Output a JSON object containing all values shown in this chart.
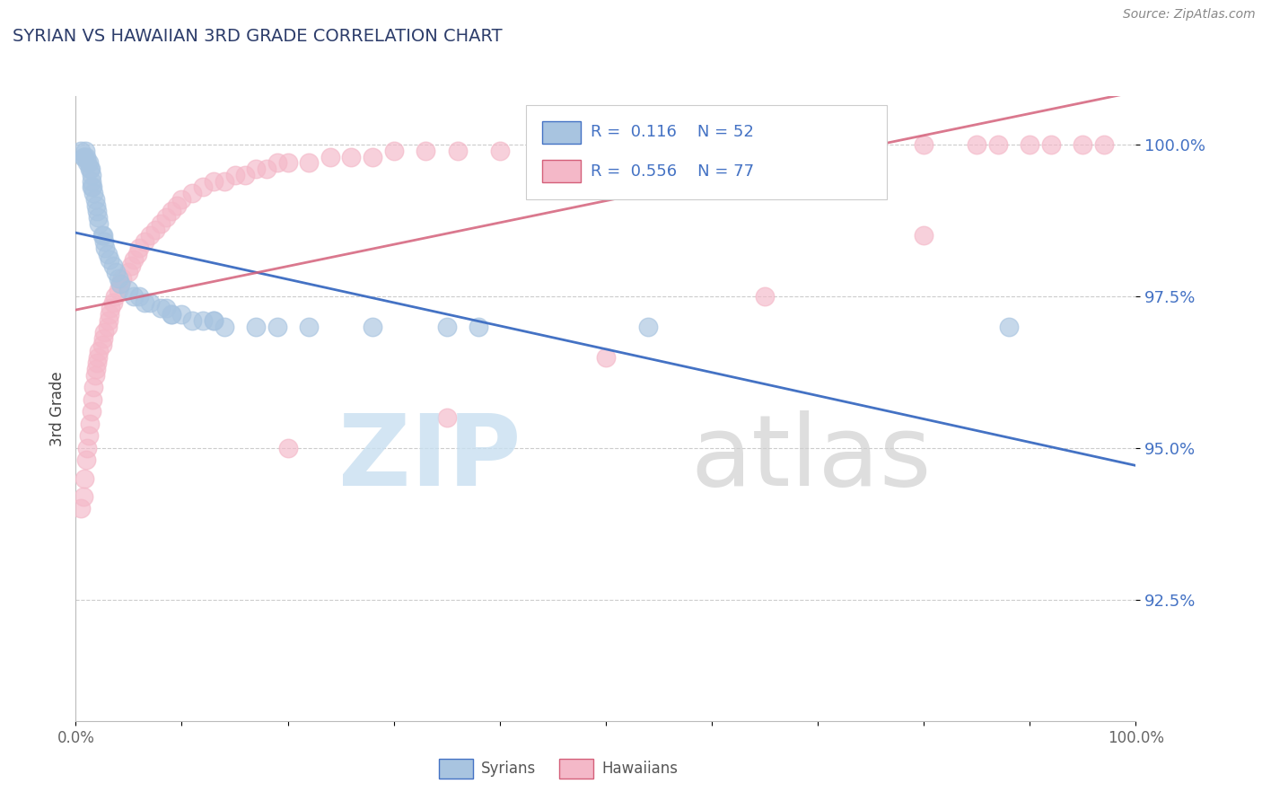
{
  "title": "SYRIAN VS HAWAIIAN 3RD GRADE CORRELATION CHART",
  "source": "Source: ZipAtlas.com",
  "ylabel": "3rd Grade",
  "xmin": 0.0,
  "xmax": 1.0,
  "ymin": 0.905,
  "ymax": 1.008,
  "yticks": [
    0.925,
    0.95,
    0.975,
    1.0
  ],
  "ytick_labels": [
    "92.5%",
    "95.0%",
    "97.5%",
    "100.0%"
  ],
  "legend_R_syrian": "0.116",
  "legend_N_syrian": "52",
  "legend_R_hawaiian": "0.556",
  "legend_N_hawaiian": "77",
  "syrian_color": "#a8c4e0",
  "hawaiian_color": "#f4b8c8",
  "syrian_line_color": "#4472c4",
  "hawaiian_line_color": "#d4607a",
  "title_color": "#2d3d6b",
  "source_color": "#888888",
  "tick_color": "#4472c4",
  "watermark_zip_color": "#c8dff0",
  "watermark_atlas_color": "#d0d0d0",
  "syrians_x": [
    0.005,
    0.007,
    0.008,
    0.009,
    0.01,
    0.011,
    0.012,
    0.013,
    0.014,
    0.015,
    0.015,
    0.015,
    0.016,
    0.017,
    0.018,
    0.019,
    0.02,
    0.021,
    0.022,
    0.025,
    0.026,
    0.027,
    0.028,
    0.03,
    0.032,
    0.035,
    0.038,
    0.04,
    0.042,
    0.05,
    0.055,
    0.06,
    0.065,
    0.07,
    0.08,
    0.085,
    0.09,
    0.1,
    0.11,
    0.13,
    0.14,
    0.17,
    0.19,
    0.22,
    0.28,
    0.35,
    0.38,
    0.54,
    0.09,
    0.12,
    0.13,
    0.88
  ],
  "syrians_y": [
    0.999,
    0.998,
    0.998,
    0.999,
    0.998,
    0.997,
    0.997,
    0.996,
    0.996,
    0.995,
    0.994,
    0.993,
    0.993,
    0.992,
    0.991,
    0.99,
    0.989,
    0.988,
    0.987,
    0.985,
    0.985,
    0.984,
    0.983,
    0.982,
    0.981,
    0.98,
    0.979,
    0.978,
    0.977,
    0.976,
    0.975,
    0.975,
    0.974,
    0.974,
    0.973,
    0.973,
    0.972,
    0.972,
    0.971,
    0.971,
    0.97,
    0.97,
    0.97,
    0.97,
    0.97,
    0.97,
    0.97,
    0.97,
    0.972,
    0.971,
    0.971,
    0.97
  ],
  "hawaiians_x": [
    0.005,
    0.007,
    0.008,
    0.01,
    0.011,
    0.012,
    0.013,
    0.015,
    0.016,
    0.017,
    0.018,
    0.019,
    0.02,
    0.021,
    0.022,
    0.025,
    0.026,
    0.027,
    0.03,
    0.031,
    0.032,
    0.033,
    0.035,
    0.037,
    0.04,
    0.042,
    0.044,
    0.05,
    0.052,
    0.055,
    0.058,
    0.06,
    0.065,
    0.07,
    0.075,
    0.08,
    0.085,
    0.09,
    0.095,
    0.1,
    0.11,
    0.12,
    0.13,
    0.14,
    0.15,
    0.16,
    0.17,
    0.18,
    0.19,
    0.2,
    0.22,
    0.24,
    0.26,
    0.28,
    0.3,
    0.33,
    0.36,
    0.4,
    0.45,
    0.5,
    0.55,
    0.6,
    0.65,
    0.7,
    0.75,
    0.8,
    0.85,
    0.87,
    0.9,
    0.92,
    0.95,
    0.97,
    0.2,
    0.35,
    0.5,
    0.65,
    0.8
  ],
  "hawaiians_y": [
    0.94,
    0.942,
    0.945,
    0.948,
    0.95,
    0.952,
    0.954,
    0.956,
    0.958,
    0.96,
    0.962,
    0.963,
    0.964,
    0.965,
    0.966,
    0.967,
    0.968,
    0.969,
    0.97,
    0.971,
    0.972,
    0.973,
    0.974,
    0.975,
    0.976,
    0.977,
    0.978,
    0.979,
    0.98,
    0.981,
    0.982,
    0.983,
    0.984,
    0.985,
    0.986,
    0.987,
    0.988,
    0.989,
    0.99,
    0.991,
    0.992,
    0.993,
    0.994,
    0.994,
    0.995,
    0.995,
    0.996,
    0.996,
    0.997,
    0.997,
    0.997,
    0.998,
    0.998,
    0.998,
    0.999,
    0.999,
    0.999,
    0.999,
    1.0,
    1.0,
    1.0,
    1.0,
    1.0,
    1.0,
    1.0,
    1.0,
    1.0,
    1.0,
    1.0,
    1.0,
    1.0,
    1.0,
    0.95,
    0.955,
    0.965,
    0.975,
    0.985
  ]
}
